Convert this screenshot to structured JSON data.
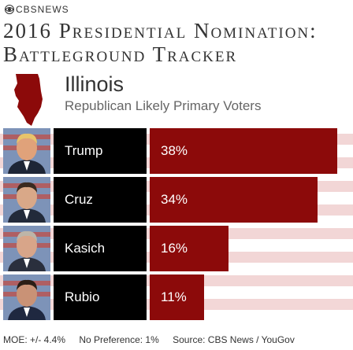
{
  "brand": "CBSNEWS",
  "title_line1": "2016 Presidential Nomination:",
  "title_line2": "Battleground Tracker",
  "state": "Illinois",
  "subtitle": "Republican Likely Primary Voters",
  "colors": {
    "bar": "#8c0a0a",
    "name_box": "#000000"
  },
  "chart_data": {
    "type": "bar",
    "orientation": "horizontal",
    "title": "2016 Presidential Nomination: Battleground Tracker",
    "subtitle": "Republican Likely Primary Voters",
    "categories": [
      "Trump",
      "Cruz",
      "Kasich",
      "Rubio"
    ],
    "values": [
      38,
      34,
      16,
      11
    ],
    "value_labels": [
      "38%",
      "34%",
      "16%",
      "11%"
    ],
    "xlim": [
      0,
      40
    ],
    "grid": false,
    "legend": "none"
  },
  "footer": {
    "moe": "MOE: +/- 4.4%",
    "no_pref": "No Preference: 1%",
    "source": "Source: CBS News / YouGov"
  }
}
